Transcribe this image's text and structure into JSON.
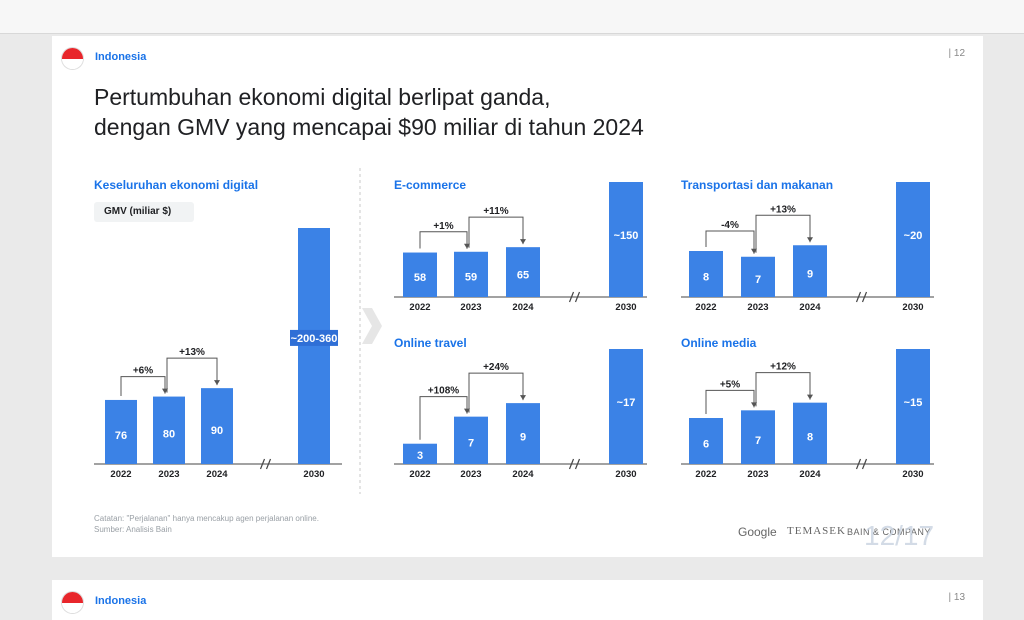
{
  "slide": {
    "country": "Indonesia",
    "page_number": "| 12",
    "title_line1": "Pertumbuhan ekonomi digital berlipat ganda,",
    "title_line2": "dengan GMV yang mencapai $90 miliar di tahun 2024",
    "unit_label": "GMV (miliar $)",
    "footnote1": "Catatan: \"Perjalanan\" hanya mencakup agen perjalanan online.",
    "footnote2": "Sumber: Analisis Bain",
    "logos": [
      "Google",
      "TEMASEK",
      "BAIN & COMPANY"
    ],
    "watermark": "12/17",
    "accent_color": "#3b82e6",
    "title_color": "#1a73e8"
  },
  "next_slide": {
    "country": "Indonesia",
    "page_number": "| 13"
  },
  "chart_data": [
    {
      "type": "bar",
      "title": "Keseluruhan ekonomi digital",
      "categories": [
        "2022",
        "2023",
        "2024",
        "2030"
      ],
      "values": [
        76,
        80,
        90,
        280
      ],
      "value_labels": [
        "76",
        "80",
        "90",
        "~200-360"
      ],
      "growth": [
        "+6%",
        "+13%"
      ],
      "axis_break": true
    },
    {
      "type": "bar",
      "title": "E-commerce",
      "categories": [
        "2022",
        "2023",
        "2024",
        "2030"
      ],
      "values": [
        58,
        59,
        65,
        150
      ],
      "value_labels": [
        "58",
        "59",
        "65",
        "~150"
      ],
      "growth": [
        "+1%",
        "+11%"
      ],
      "axis_break": true
    },
    {
      "type": "bar",
      "title": "Transportasi dan makanan",
      "categories": [
        "2022",
        "2023",
        "2024",
        "2030"
      ],
      "values": [
        8,
        7,
        9,
        20
      ],
      "value_labels": [
        "8",
        "7",
        "9",
        "~20"
      ],
      "growth": [
        "-4%",
        "+13%"
      ],
      "axis_break": true
    },
    {
      "type": "bar",
      "title": "Online travel",
      "categories": [
        "2022",
        "2023",
        "2024",
        "2030"
      ],
      "values": [
        3,
        7,
        9,
        17
      ],
      "value_labels": [
        "3",
        "7",
        "9",
        "~17"
      ],
      "growth": [
        "+108%",
        "+24%"
      ],
      "axis_break": true
    },
    {
      "type": "bar",
      "title": "Online media",
      "categories": [
        "2022",
        "2023",
        "2024",
        "2030"
      ],
      "values": [
        6,
        7,
        8,
        15
      ],
      "value_labels": [
        "6",
        "7",
        "8",
        "~15"
      ],
      "growth": [
        "+5%",
        "+12%"
      ],
      "axis_break": true
    }
  ]
}
